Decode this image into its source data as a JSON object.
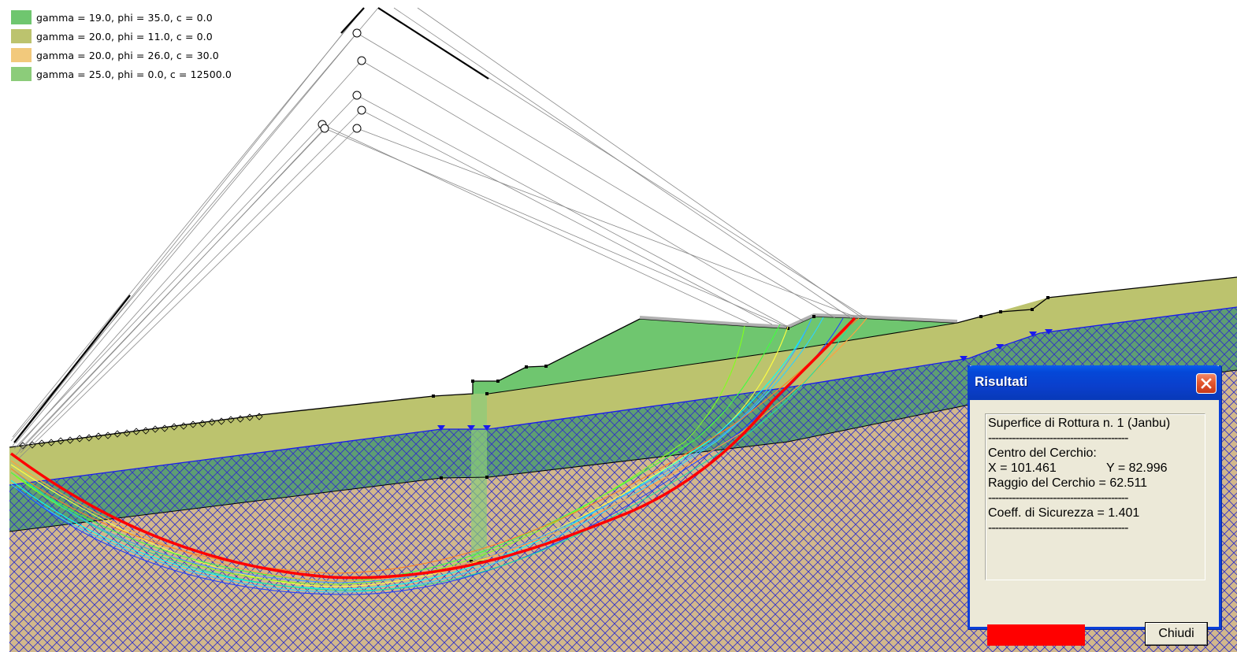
{
  "legend": [
    {
      "label": "gamma = 19.0, phi = 35.0, c = 0.0",
      "color": "#6fc66f"
    },
    {
      "label": "gamma = 20.0, phi = 11.0, c = 0.0",
      "color": "#bcc36e"
    },
    {
      "label": "gamma = 20.0, phi = 26.0, c = 30.0",
      "color": "#f2c97c"
    },
    {
      "label": "gamma = 25.0, phi = 0.0, c = 12500.0",
      "color": "#8ccc7a"
    }
  ],
  "colors": {
    "crest_fill": "#6fc66f",
    "layer2_fill": "#bcc36e",
    "layer3_fill": "#5e9e73",
    "bedrock_fill": "#d2b88c",
    "hatch_line": "#3030c8",
    "critical_surface": "#ff0000",
    "water_marker": "#1a1aee",
    "dialog_title": "#0a46d8"
  },
  "results_dialog": {
    "title": "Risultati",
    "surface_label": "Superfice di Rottura n. 1 (Janbu)",
    "separator": "-----------------------------------------",
    "center_label": "Centro del Cerchio:",
    "center_x": "X = 101.461",
    "center_y": "Y = 82.996",
    "radius": "Raggio del Cerchio = 62.511",
    "safety_factor": "Coeff. di Sicurezza = 1.401",
    "close_button": "Chiudi",
    "surface_color": "#ff0000"
  }
}
